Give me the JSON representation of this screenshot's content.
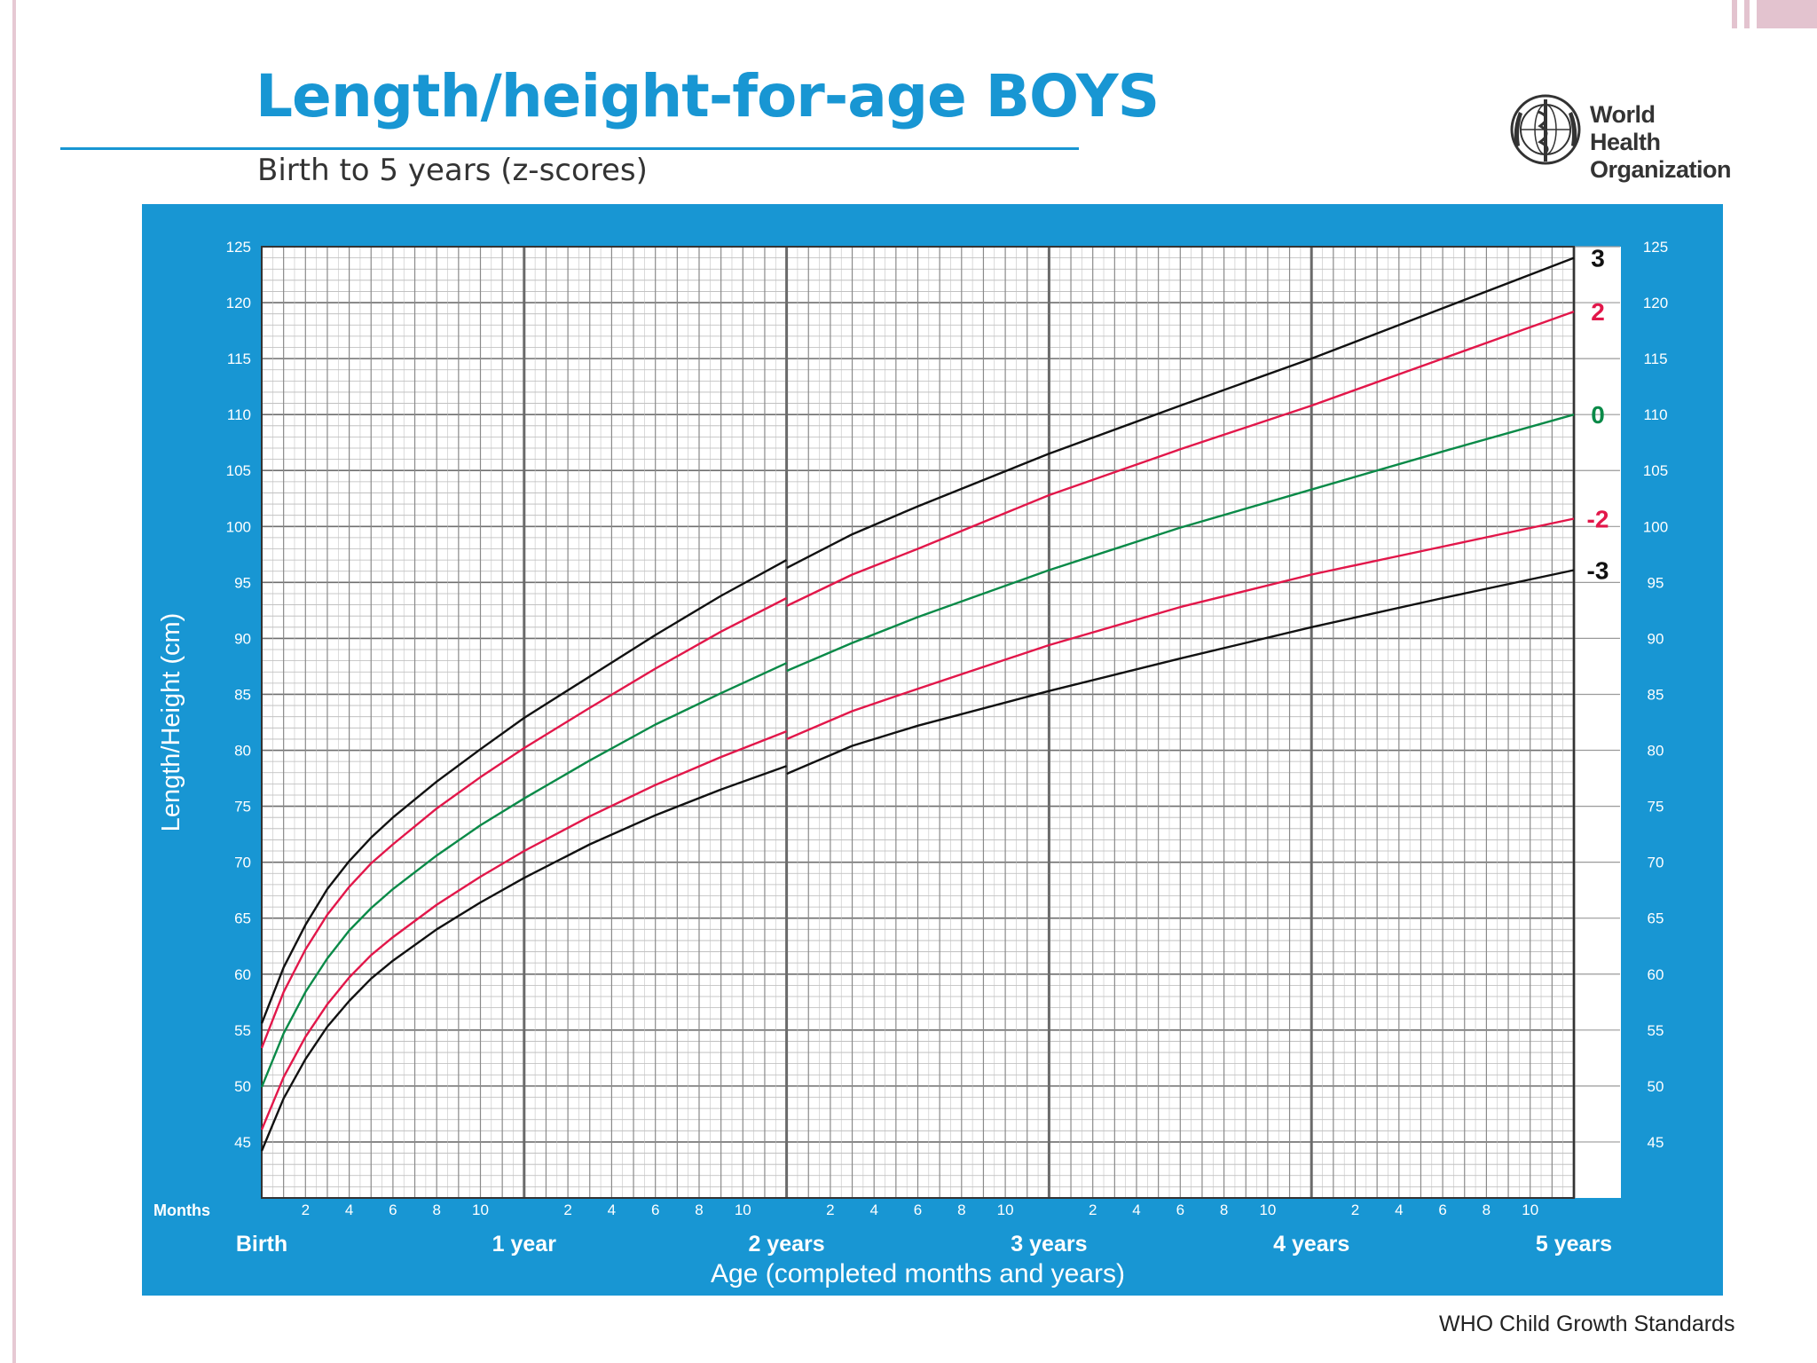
{
  "title": "Length/height-for-age BOYS",
  "subtitle": "Birth to 5 years (z-scores)",
  "logo": {
    "name_line1": "World Health",
    "name_line2": "Organization"
  },
  "footer": "WHO Child Growth Standards",
  "colors": {
    "brand_blue": "#1896d3",
    "curve_black": "#111111",
    "curve_red": "#e2174a",
    "curve_green": "#0a8a48",
    "grid": "#9a9a9a",
    "slide_accent": "#e3c3cf"
  },
  "chart_data": {
    "type": "line",
    "title": "Length/height-for-age BOYS",
    "subtitle": "Birth to 5 years (z-scores)",
    "xlabel": "Age (completed months and years)",
    "ylabel": "Length/Height (cm)",
    "x_unit_label": "Months",
    "xlim": [
      0,
      60
    ],
    "ylim": [
      40,
      125
    ],
    "y_ticks": [
      45,
      50,
      55,
      60,
      65,
      70,
      75,
      80,
      85,
      90,
      95,
      100,
      105,
      110,
      115,
      120,
      125
    ],
    "x_minor_tick_labels": [
      "2",
      "4",
      "6",
      "8",
      "10"
    ],
    "x_year_labels": [
      "Birth",
      "1 year",
      "2 years",
      "3 years",
      "4 years",
      "5 years"
    ],
    "grid": true,
    "x_months": [
      0,
      1,
      2,
      3,
      4,
      5,
      6,
      8,
      10,
      12,
      15,
      18,
      21,
      24,
      27,
      30,
      36,
      42,
      48,
      54,
      60
    ],
    "series": [
      {
        "name": "3",
        "color": "#111111",
        "values": [
          55.6,
          60.6,
          64.4,
          67.6,
          70.1,
          72.2,
          74.0,
          77.2,
          80.1,
          82.9,
          86.6,
          90.3,
          93.8,
          97.0,
          99.3,
          101.8,
          106.5,
          110.8,
          115.0,
          119.5,
          124.0
        ]
      },
      {
        "name": "2",
        "color": "#e2174a",
        "values": [
          53.4,
          58.4,
          62.2,
          65.3,
          67.8,
          69.9,
          71.6,
          74.8,
          77.6,
          80.2,
          83.8,
          87.3,
          90.6,
          93.6,
          95.7,
          98.0,
          102.8,
          106.9,
          110.8,
          115.0,
          119.2
        ]
      },
      {
        "name": "0",
        "color": "#0a8a48",
        "values": [
          49.9,
          54.7,
          58.4,
          61.4,
          63.9,
          65.9,
          67.6,
          70.6,
          73.3,
          75.7,
          79.1,
          82.3,
          85.1,
          87.8,
          89.6,
          91.9,
          96.1,
          99.9,
          103.3,
          106.7,
          110.0
        ]
      },
      {
        "name": "-2",
        "color": "#e2174a",
        "values": [
          46.1,
          50.8,
          54.4,
          57.3,
          59.7,
          61.7,
          63.3,
          66.2,
          68.7,
          71.0,
          74.1,
          76.9,
          79.4,
          81.7,
          83.5,
          85.5,
          89.4,
          92.8,
          95.7,
          98.2,
          100.7
        ]
      },
      {
        "name": "-3",
        "color": "#111111",
        "values": [
          44.2,
          48.9,
          52.4,
          55.3,
          57.6,
          59.6,
          61.2,
          64.0,
          66.4,
          68.6,
          71.6,
          74.2,
          76.5,
          78.6,
          80.4,
          82.2,
          85.3,
          88.2,
          91.0,
          93.6,
          96.1
        ]
      }
    ]
  }
}
